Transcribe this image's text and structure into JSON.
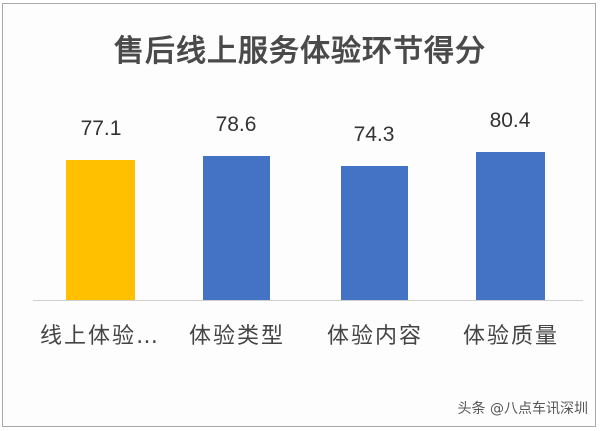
{
  "chart_data": {
    "type": "bar",
    "title": "售后线上服务体验环节得分",
    "xlabel": "",
    "ylabel": "",
    "categories": [
      "线上体验…",
      "体验类型",
      "体验内容",
      "体验质量"
    ],
    "values": [
      77.1,
      78.6,
      74.3,
      80.4
    ],
    "value_labels": [
      "77.1",
      "78.6",
      "74.3",
      "80.4"
    ],
    "colors": [
      "#FFC000",
      "#4472C4",
      "#4472C4",
      "#4472C4"
    ],
    "grid": false,
    "legend": null
  },
  "watermark": "头条 @八点车讯深圳"
}
